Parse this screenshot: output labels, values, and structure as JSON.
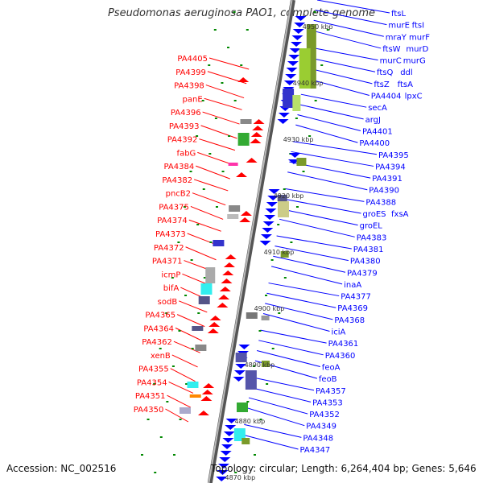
{
  "title": "Pseudomonas aeruginosa PAO1, complete genome",
  "footer": {
    "accession": "Accession: NC_002516",
    "topology": "Topology: circular; Length: 6,264,404 bp; Genes: 5,646"
  },
  "colors": {
    "left_strand": "#ff0000",
    "right_strand": "#0000ff",
    "backbone": "#888888",
    "tick": "#008800"
  },
  "scale_labels": [
    "4950 kbp",
    "4940 kbp",
    "4930 kbp",
    "4920 kbp",
    "4910 kbp",
    "4900 kbp",
    "4890 kbp",
    "4880 kbp",
    "4870 kbp"
  ],
  "left_labels": [
    "PA4405",
    "PA4399",
    "PA4398",
    "panE",
    "PA4396",
    "PA4393",
    "PA4392",
    "fabG",
    "PA4384",
    "PA4382",
    "pncB2",
    "PA4375",
    "PA4374",
    "PA4373",
    "PA4372",
    "PA4371",
    "icmP",
    "bifA",
    "sodB",
    "PA4365",
    "PA4364",
    "PA4362",
    "xenB",
    "PA4355",
    "PA4354",
    "PA4351",
    "PA4350"
  ],
  "right_labels": [
    "ftsL",
    "murE",
    "ftsI",
    "mraY",
    "murF",
    "ftsW",
    "murD",
    "murC",
    "murG",
    "ftsQ",
    "ddl",
    "ftsZ",
    "ftsA",
    "PA4404",
    "lpxC",
    "secA",
    "argJ",
    "PA4401",
    "PA4400",
    "PA4395",
    "PA4394",
    "PA4391",
    "PA4390",
    "PA4388",
    "groES",
    "fxsA",
    "groEL",
    "PA4383",
    "PA4381",
    "PA4380",
    "PA4379",
    "inaA",
    "PA4377",
    "PA4369",
    "PA4368",
    "iciA",
    "PA4361",
    "PA4360",
    "feoA",
    "feoB",
    "PA4357",
    "PA4353",
    "PA4352",
    "PA4349",
    "PA4348",
    "PA4347"
  ]
}
